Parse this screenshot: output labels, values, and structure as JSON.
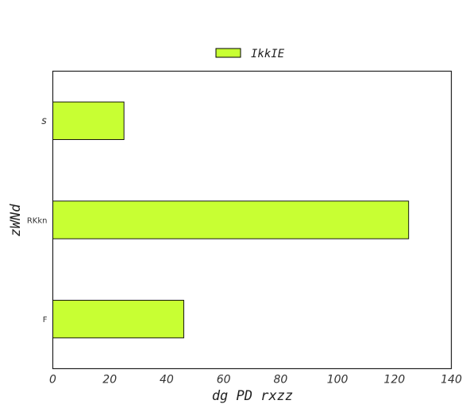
{
  "chart_data": {
    "type": "bar",
    "orientation": "horizontal",
    "categories": [
      "F",
      "RKkn",
      "s"
    ],
    "series": [
      {
        "name": "IkkIE",
        "values": [
          46,
          125,
          25
        ],
        "color": "#c8ff33"
      }
    ],
    "xlabel": "dg PD rxzz",
    "ylabel": "zWNd",
    "xlim": [
      0,
      140
    ],
    "xticks": [
      0,
      20,
      40,
      60,
      80,
      100,
      120,
      140
    ],
    "grid": false,
    "legend_position": "top-center"
  }
}
